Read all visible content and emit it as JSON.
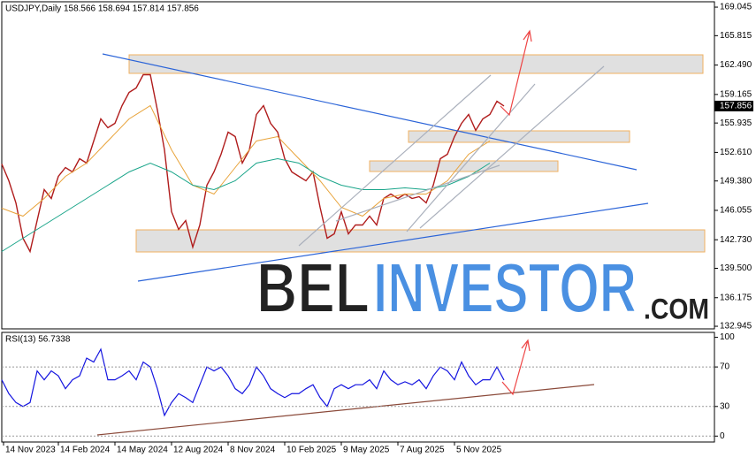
{
  "chart_data": {
    "type": "line",
    "title": "USDJPY,Daily  158.566 158.694 157.814 157.856",
    "xlim": [
      0,
      806
    ],
    "xticks": [
      {
        "value": 2,
        "label": "14 Nov 2023"
      },
      {
        "value": 64,
        "label": "14 Feb 2024"
      },
      {
        "value": 128,
        "label": "14 May 2024"
      },
      {
        "value": 192,
        "label": "12 Aug 2024"
      },
      {
        "value": 256,
        "label": "8 Nov 2024"
      },
      {
        "value": 320,
        "label": "10 Feb 2025"
      },
      {
        "value": 384,
        "label": "9 May 2025"
      },
      {
        "value": 448,
        "label": "7 Aug 2025"
      },
      {
        "value": 512,
        "label": "5 Nov 2025"
      }
    ],
    "ylim": [
      132.65,
      169.65
    ],
    "yticks": [
      169.045,
      165.815,
      {
        "value": 162.49,
        "label": "162.490"
      },
      159.165,
      155.935,
      {
        "value": 152.61,
        "label": "152.610"
      },
      {
        "value": 149.38,
        "label": "149.380"
      },
      146.055,
      {
        "value": 142.73,
        "label": "142.730"
      },
      {
        "value": 139.5,
        "label": "139.500"
      },
      136.175,
      132.945
    ],
    "last_price": 157.856,
    "series": [
      {
        "name": "USDJPY",
        "color": "#b01c1c",
        "x": [
          0,
          8,
          16,
          24,
          32,
          40,
          48,
          56,
          64,
          72,
          80,
          88,
          96,
          104,
          112,
          120,
          128,
          136,
          144,
          152,
          160,
          168,
          176,
          184,
          192,
          200,
          208,
          216,
          224,
          232,
          240,
          248,
          256,
          264,
          272,
          280,
          288,
          296,
          304,
          312,
          320,
          328,
          336,
          344,
          352,
          360,
          368,
          376,
          384,
          392,
          400,
          408,
          416,
          424,
          432,
          440,
          448,
          456,
          464,
          472,
          480,
          488,
          496,
          504,
          512,
          520,
          528,
          536,
          544,
          552,
          560,
          568
        ],
        "values": [
          151.3,
          149.4,
          146.9,
          142.9,
          141.4,
          144.9,
          148.4,
          147.4,
          149.9,
          150.9,
          150.4,
          151.9,
          151.4,
          153.9,
          156.4,
          155.4,
          155.9,
          157.9,
          159.4,
          159.9,
          161.4,
          161.4,
          157.4,
          152.9,
          145.9,
          143.9,
          144.9,
          141.9,
          144.4,
          148.9,
          150.4,
          152.4,
          154.9,
          154.4,
          151.4,
          152.9,
          156.9,
          157.9,
          155.9,
          154.9,
          151.9,
          150.4,
          149.9,
          149.4,
          150.4,
          146.4,
          142.9,
          143.4,
          145.9,
          143.4,
          144.4,
          144.4,
          145.4,
          144.4,
          147.4,
          147.9,
          147.4,
          147.9,
          147.4,
          147.6,
          146.9,
          148.9,
          151.9,
          152.4,
          154.4,
          155.9,
          156.9,
          155.1,
          156.4,
          156.9,
          158.4,
          157.856
        ]
      },
      {
        "name": "MA slow",
        "color": "#e8a33a",
        "x": [
          0,
          24,
          48,
          72,
          96,
          120,
          144,
          168,
          192,
          216,
          240,
          264,
          288,
          312,
          336,
          360,
          384,
          408,
          432,
          456,
          480,
          504,
          528,
          552
        ],
        "values": [
          146.3,
          145.4,
          147.4,
          149.9,
          151.4,
          153.9,
          156.4,
          157.9,
          152.9,
          148.9,
          147.9,
          150.9,
          153.9,
          154.4,
          151.9,
          149.4,
          146.4,
          145.4,
          147.4,
          147.9,
          147.9,
          149.4,
          152.4,
          153.9
        ]
      },
      {
        "name": "MA long",
        "color": "#1aa58a",
        "x": [
          0,
          24,
          48,
          72,
          96,
          120,
          144,
          168,
          192,
          216,
          240,
          264,
          288,
          312,
          336,
          360,
          384,
          408,
          432,
          456,
          480,
          504,
          528,
          552
        ],
        "values": [
          141.4,
          142.9,
          144.4,
          145.9,
          147.4,
          148.9,
          150.4,
          151.4,
          150.4,
          148.9,
          148.4,
          149.4,
          151.4,
          151.9,
          151.4,
          149.9,
          148.9,
          148.4,
          148.4,
          148.6,
          148.4,
          148.9,
          149.9,
          151.4
        ]
      }
    ],
    "rsi": {
      "label": "RSI(13) 56.7338",
      "color": "#1515e0",
      "ylim": [
        -6,
        105
      ],
      "yticks": [
        100,
        70,
        30,
        0
      ],
      "values": [
        57,
        43,
        34,
        30,
        34,
        66,
        57,
        66,
        61,
        48,
        57,
        61,
        79,
        75,
        88,
        57,
        57,
        61,
        66,
        57,
        75,
        70,
        48,
        21,
        34,
        43,
        39,
        34,
        52,
        70,
        66,
        70,
        61,
        48,
        43,
        52,
        70,
        61,
        48,
        43,
        39,
        43,
        43,
        48,
        52,
        39,
        30,
        48,
        52,
        48,
        52,
        52,
        57,
        48,
        66,
        57,
        52,
        55,
        52,
        57,
        48,
        61,
        70,
        66,
        57,
        75,
        61,
        52,
        57,
        57,
        70,
        56.7338
      ]
    },
    "watermark": [
      "BEL",
      "INVESTOR",
      ".COM"
    ]
  }
}
